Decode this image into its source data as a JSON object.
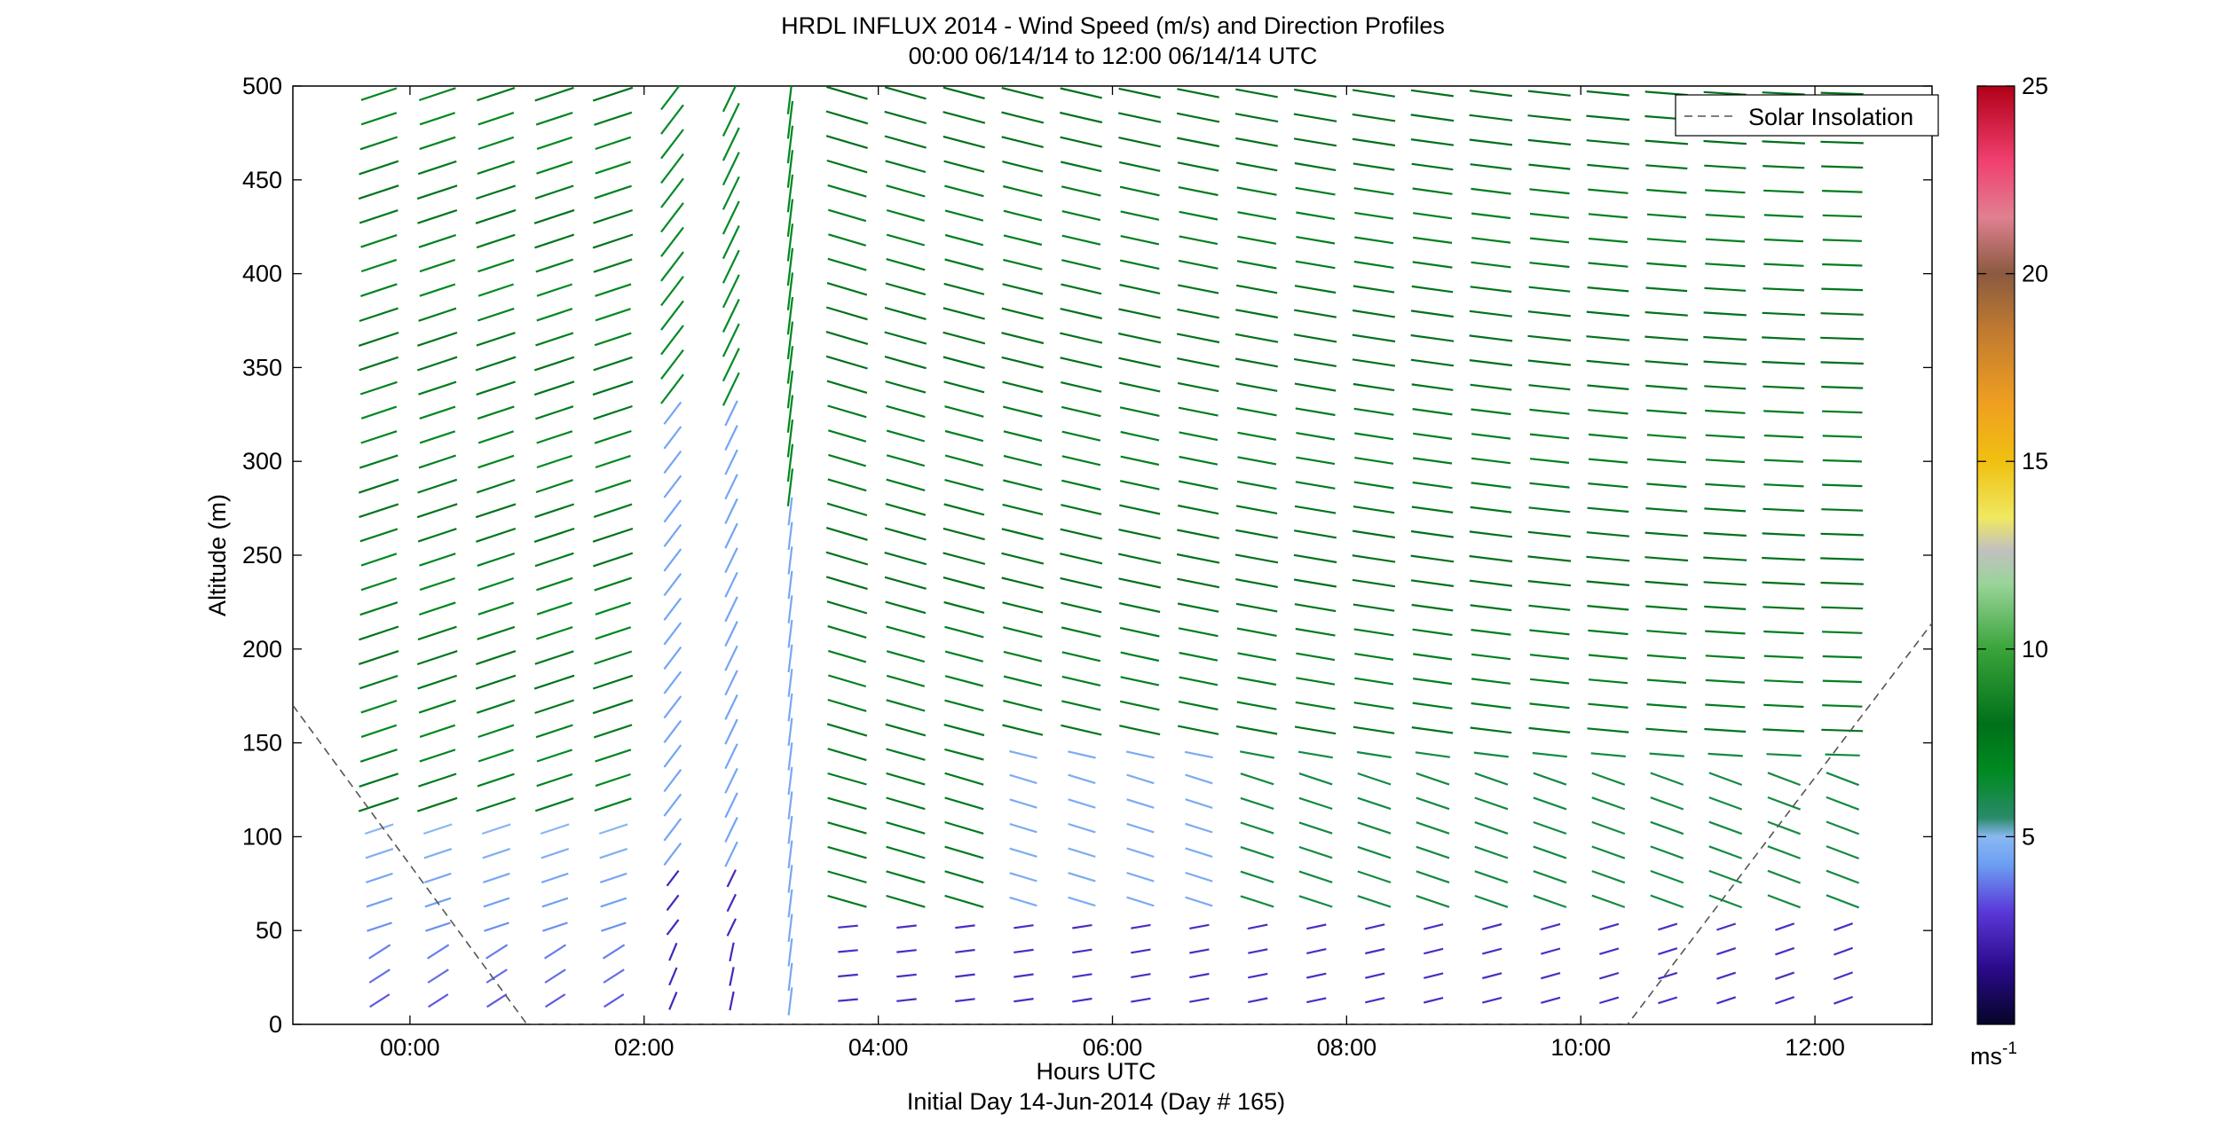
{
  "chart_data": {
    "type": "wind-barb-profile",
    "title": "HRDL INFLUX 2014 - Wind Speed (m/s) and Direction Profiles",
    "subtitle": "00:00 06/14/14 to 12:00 06/14/14  UTC",
    "xlabel": "Hours UTC",
    "xlabel2": "Initial Day 14-Jun-2014 (Day # 165)",
    "ylabel": "Altitude (m)",
    "xlim": [
      -1,
      13
    ],
    "ylim": [
      0,
      500
    ],
    "x_ticks": [
      {
        "value": 0,
        "label": "00:00"
      },
      {
        "value": 2,
        "label": "02:00"
      },
      {
        "value": 4,
        "label": "04:00"
      },
      {
        "value": 6,
        "label": "06:00"
      },
      {
        "value": 8,
        "label": "08:00"
      },
      {
        "value": 10,
        "label": "10:00"
      },
      {
        "value": 12,
        "label": "12:00"
      }
    ],
    "y_ticks": [
      0,
      50,
      100,
      150,
      200,
      250,
      300,
      350,
      400,
      450,
      500
    ],
    "legend": {
      "label": "Solar Insolation",
      "position": "top-right"
    },
    "colorbar": {
      "unit_label": "ms",
      "unit_exponent": "-1",
      "range": [
        0,
        25
      ],
      "ticks": [
        5,
        10,
        15,
        20,
        25
      ]
    },
    "profile_times_hours": [
      -0.25,
      0.25,
      0.75,
      1.25,
      1.75,
      2.25,
      2.75,
      3.25,
      3.75,
      4.25,
      4.75,
      5.25,
      5.75,
      6.25,
      6.75,
      7.25,
      7.75,
      8.25,
      8.75,
      9.25,
      9.75,
      10.25,
      10.75,
      11.25,
      11.75,
      12.25
    ],
    "altitude_range_m": [
      13,
      496
    ],
    "solar_insolation_curve": [
      [
        -1,
        170
      ],
      [
        1,
        0
      ],
      [
        10.4,
        0
      ],
      [
        13.1,
        222
      ]
    ]
  },
  "colors": {
    "solar_line": "#555555",
    "colormap": [
      "#0a0a3a",
      "#2a0a8a",
      "#5030d0",
      "#6a9cf0",
      "#8ab8f0",
      "#2a9a6a",
      "#0a8a2a",
      "#00781c",
      "#3aa03a",
      "#8ad08a",
      "#c0c0c0",
      "#f0e040",
      "#f0a020",
      "#a06020",
      "#e05080",
      "#c00020"
    ]
  }
}
